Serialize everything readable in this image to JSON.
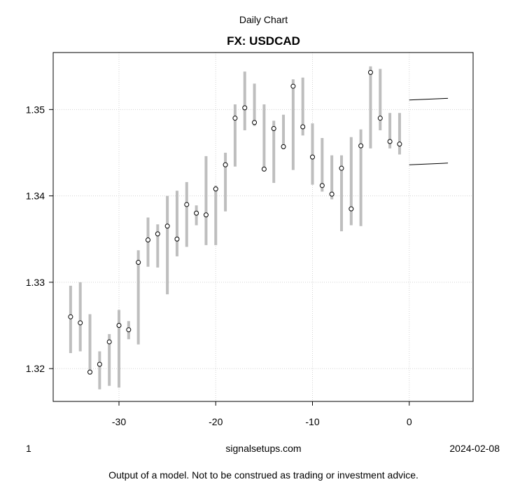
{
  "header": {
    "subtitle": "Daily Chart",
    "title": "FX: USDCAD"
  },
  "footer": {
    "left": "1",
    "center": "signalsetups.com",
    "right": "2024-02-08",
    "disclaimer": "Output of a model. Not to be construed as trading or investment advice."
  },
  "chart_data": {
    "type": "ohlc-range",
    "x_ticks": [
      -30,
      -20,
      -10,
      0
    ],
    "y_ticks": [
      1.32,
      1.33,
      1.34,
      1.35
    ],
    "x_tick_labels": [
      "-30",
      "-20",
      "-10",
      "0"
    ],
    "y_tick_labels": [
      "1.32",
      "1.33",
      "1.34",
      "1.35"
    ],
    "xlim": [
      -36.8,
      6.6
    ],
    "ylim": [
      1.3162,
      1.3566
    ],
    "grid": true,
    "colors": {
      "range_bar": "#bebebe",
      "point_fill": "#ffffff",
      "point_stroke": "#000000",
      "grid": "#d3d3d3",
      "forecast": "#000000"
    },
    "bars": [
      {
        "x": -35,
        "low": 1.3218,
        "high": 1.3296,
        "close": 1.326
      },
      {
        "x": -34,
        "low": 1.322,
        "high": 1.33,
        "close": 1.3253
      },
      {
        "x": -33,
        "low": 1.3193,
        "high": 1.3263,
        "close": 1.3196
      },
      {
        "x": -32,
        "low": 1.3176,
        "high": 1.322,
        "close": 1.3205
      },
      {
        "x": -31,
        "low": 1.318,
        "high": 1.324,
        "close": 1.3231
      },
      {
        "x": -30,
        "low": 1.3178,
        "high": 1.3268,
        "close": 1.325
      },
      {
        "x": -29,
        "low": 1.3234,
        "high": 1.3255,
        "close": 1.3245
      },
      {
        "x": -28,
        "low": 1.3228,
        "high": 1.3337,
        "close": 1.3323
      },
      {
        "x": -27,
        "low": 1.3318,
        "high": 1.3375,
        "close": 1.3349
      },
      {
        "x": -26,
        "low": 1.3317,
        "high": 1.3367,
        "close": 1.3356
      },
      {
        "x": -25,
        "low": 1.3286,
        "high": 1.34,
        "close": 1.3365
      },
      {
        "x": -24,
        "low": 1.333,
        "high": 1.3406,
        "close": 1.335
      },
      {
        "x": -23,
        "low": 1.3341,
        "high": 1.3416,
        "close": 1.339
      },
      {
        "x": -22,
        "low": 1.3366,
        "high": 1.3389,
        "close": 1.338
      },
      {
        "x": -21,
        "low": 1.3343,
        "high": 1.3446,
        "close": 1.3378
      },
      {
        "x": -20,
        "low": 1.3343,
        "high": 1.3412,
        "close": 1.3408
      },
      {
        "x": -19,
        "low": 1.3382,
        "high": 1.345,
        "close": 1.3436
      },
      {
        "x": -18,
        "low": 1.3434,
        "high": 1.3506,
        "close": 1.349
      },
      {
        "x": -17,
        "low": 1.3476,
        "high": 1.3544,
        "close": 1.3502
      },
      {
        "x": -16,
        "low": 1.3481,
        "high": 1.353,
        "close": 1.3485
      },
      {
        "x": -15,
        "low": 1.343,
        "high": 1.3506,
        "close": 1.3431
      },
      {
        "x": -14,
        "low": 1.3415,
        "high": 1.3487,
        "close": 1.3478
      },
      {
        "x": -13,
        "low": 1.3454,
        "high": 1.3494,
        "close": 1.3457
      },
      {
        "x": -12,
        "low": 1.343,
        "high": 1.3535,
        "close": 1.3527
      },
      {
        "x": -11,
        "low": 1.347,
        "high": 1.3537,
        "close": 1.348
      },
      {
        "x": -10,
        "low": 1.3413,
        "high": 1.3484,
        "close": 1.3445
      },
      {
        "x": -9,
        "low": 1.3405,
        "high": 1.3467,
        "close": 1.3412
      },
      {
        "x": -8,
        "low": 1.3396,
        "high": 1.3447,
        "close": 1.3402
      },
      {
        "x": -7,
        "low": 1.3359,
        "high": 1.3447,
        "close": 1.3432
      },
      {
        "x": -6,
        "low": 1.3366,
        "high": 1.3468,
        "close": 1.3385
      },
      {
        "x": -5,
        "low": 1.3365,
        "high": 1.3477,
        "close": 1.3458
      },
      {
        "x": -4,
        "low": 1.3455,
        "high": 1.355,
        "close": 1.3543
      },
      {
        "x": -3,
        "low": 1.3476,
        "high": 1.3547,
        "close": 1.349
      },
      {
        "x": -2,
        "low": 1.3455,
        "high": 1.3496,
        "close": 1.3463
      },
      {
        "x": -1,
        "low": 1.3448,
        "high": 1.3496,
        "close": 1.346
      }
    ],
    "forecast_lines": [
      {
        "x": [
          0,
          4
        ],
        "y": [
          1.3511,
          1.3513
        ]
      },
      {
        "x": [
          0,
          4
        ],
        "y": [
          1.3436,
          1.3438
        ]
      }
    ]
  }
}
